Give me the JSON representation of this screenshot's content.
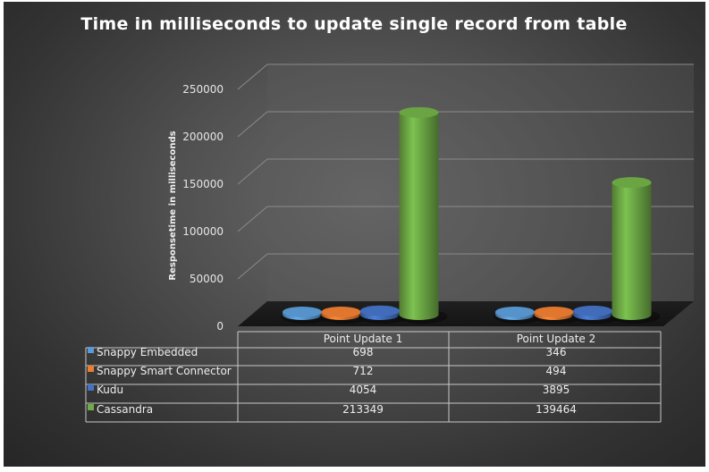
{
  "chart_data": {
    "type": "bar",
    "title": "Time in milliseconds to update single record from table",
    "ylabel": "Responsetime in milliseconds",
    "xlabel": "",
    "ylim": [
      0,
      250000
    ],
    "yticks": [
      "250000",
      "200000",
      "150000",
      "100000",
      "50000",
      "0"
    ],
    "categories": [
      "Point Update 1",
      "Point Update 2"
    ],
    "series": [
      {
        "name": "Snappy Embedded",
        "values": [
          698,
          346
        ],
        "color": "#5b9bd5"
      },
      {
        "name": "Snappy Smart Connector",
        "values": [
          712,
          494
        ],
        "color": "#ed7d31"
      },
      {
        "name": "Kudu",
        "values": [
          4054,
          3895
        ],
        "color": "#4472c4"
      },
      {
        "name": "Cassandra",
        "values": [
          213349,
          139464
        ],
        "color": "#70ad47"
      }
    ],
    "grid": true,
    "legend": "data table below chart",
    "data_table": {
      "rows": [
        [
          "698",
          "346"
        ],
        [
          "712",
          "494"
        ],
        [
          "4054",
          "3895"
        ],
        [
          "213349",
          "139464"
        ]
      ]
    }
  }
}
